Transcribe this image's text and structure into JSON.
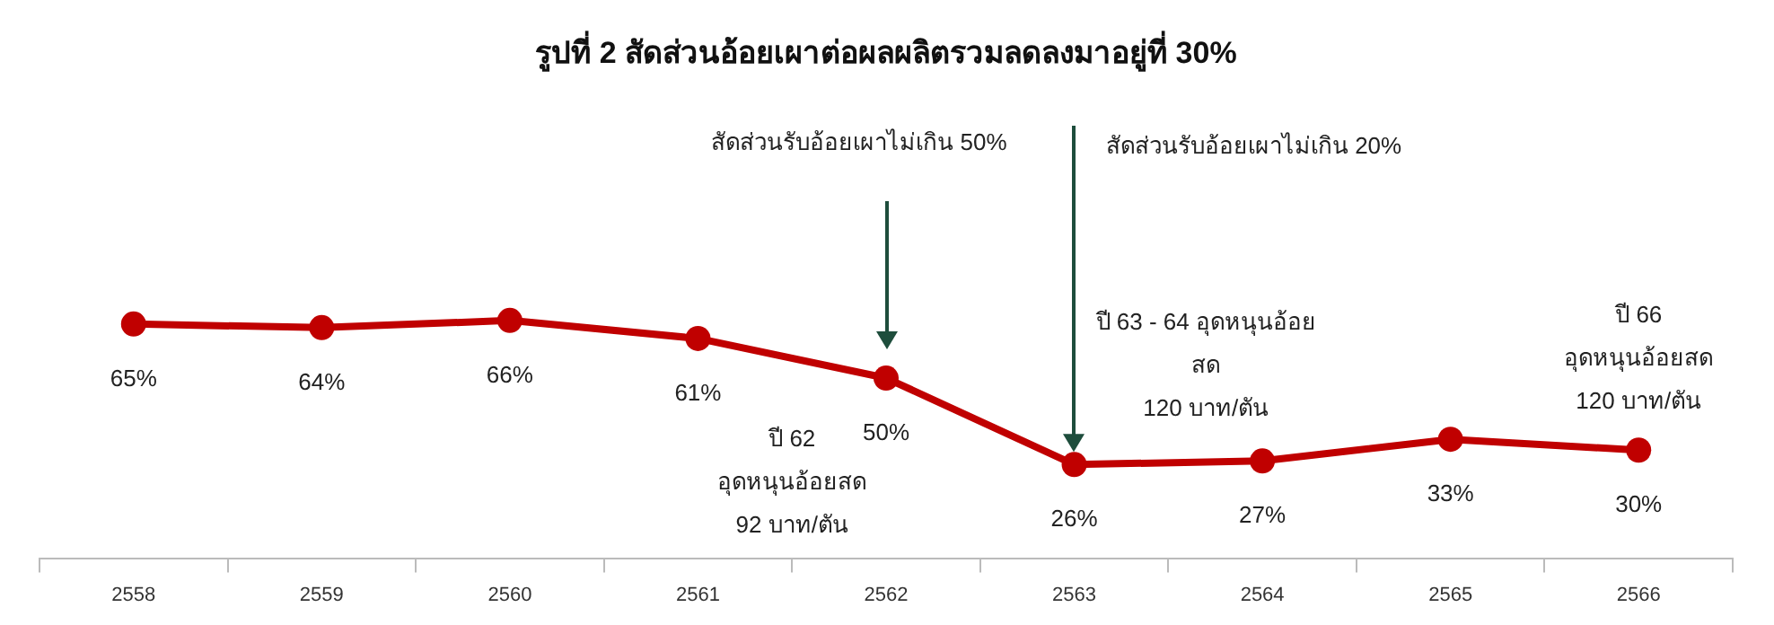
{
  "chart_data": {
    "type": "line",
    "title": "รูปที่ 2 สัดส่วนอ้อยเผาต่อผลผลิตรวมลดลงมาอยู่ที่ 30%",
    "categories": [
      "2558",
      "2559",
      "2560",
      "2561",
      "2562",
      "2563",
      "2564",
      "2565",
      "2566"
    ],
    "series": [
      {
        "color": "#c00000",
        "values": [
          65,
          64,
          66,
          61,
          50,
          26,
          27,
          33,
          30
        ],
        "value_labels": [
          "65%",
          "64%",
          "66%",
          "61%",
          "50%",
          "26%",
          "27%",
          "33%",
          "30%"
        ]
      }
    ],
    "tick_labels": "x",
    "legend": false,
    "marker": "circle",
    "line_style": "solid",
    "annotations": [
      "สัดส่วนรับอ้อยเผาไม่เกิน 50%",
      "สัดส่วนรับอ้อยเผาไม่เกิน 20%",
      "ปี 62\nอุดหนุนอ้อยสด\n92 บาท/ตัน",
      "ปี 63 - 64 อุดหนุนอ้อย\nสด\n120 บาท/ตัน",
      "ปี 66\nอุดหนุนอ้อยสด\n120 บาท/ตัน"
    ]
  }
}
